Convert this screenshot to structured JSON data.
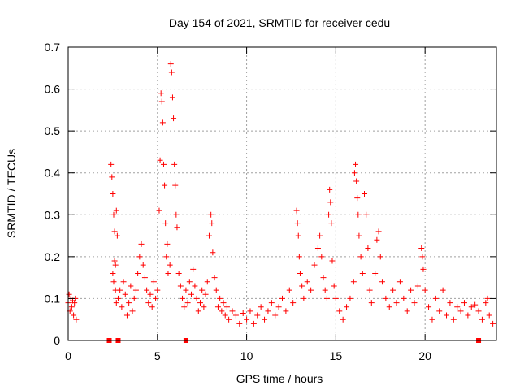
{
  "chart_data": {
    "type": "scatter",
    "title": "Day 154 of 2021, SRMTID for receiver cedu",
    "xlabel": "GPS time / hours",
    "ylabel": "SRMTID / TECUs",
    "xlim": [
      0,
      24
    ],
    "ylim": [
      0,
      0.7
    ],
    "xticks": [
      0,
      5,
      10,
      15,
      20
    ],
    "yticks": [
      0,
      0.1,
      0.2,
      0.3,
      0.4,
      0.5,
      0.6,
      0.7
    ],
    "xtick_labels": [
      "0",
      "5",
      "10",
      "15",
      "20"
    ],
    "ytick_labels": [
      "0",
      "0.1",
      "0.2",
      "0.3",
      "0.4",
      "0.5",
      "0.6",
      "0.7"
    ],
    "grid": true,
    "marker": "+",
    "color": "#ff0000",
    "series": [
      {
        "name": "SRMTID",
        "points": [
          [
            0.0,
            0.09
          ],
          [
            0.05,
            0.11
          ],
          [
            0.1,
            0.07
          ],
          [
            0.15,
            0.1
          ],
          [
            0.2,
            0.08
          ],
          [
            0.25,
            0.095
          ],
          [
            0.3,
            0.06
          ],
          [
            0.35,
            0.09
          ],
          [
            0.4,
            0.1
          ],
          [
            0.45,
            0.05
          ],
          [
            2.4,
            0.42
          ],
          [
            2.45,
            0.39
          ],
          [
            2.5,
            0.35
          ],
          [
            2.55,
            0.3
          ],
          [
            2.6,
            0.26
          ],
          [
            2.65,
            0.18
          ],
          [
            2.7,
            0.31
          ],
          [
            2.75,
            0.25
          ],
          [
            2.5,
            0.16
          ],
          [
            2.55,
            0.14
          ],
          [
            2.6,
            0.19
          ],
          [
            2.65,
            0.12
          ],
          [
            2.7,
            0.09
          ],
          [
            2.8,
            0.1
          ],
          [
            2.9,
            0.12
          ],
          [
            3.0,
            0.08
          ],
          [
            3.1,
            0.14
          ],
          [
            3.2,
            0.11
          ],
          [
            3.3,
            0.06
          ],
          [
            3.4,
            0.09
          ],
          [
            3.5,
            0.13
          ],
          [
            3.6,
            0.07
          ],
          [
            3.7,
            0.1
          ],
          [
            3.8,
            0.12
          ],
          [
            3.9,
            0.16
          ],
          [
            4.0,
            0.2
          ],
          [
            4.1,
            0.23
          ],
          [
            4.2,
            0.18
          ],
          [
            4.3,
            0.15
          ],
          [
            4.4,
            0.12
          ],
          [
            4.5,
            0.09
          ],
          [
            4.6,
            0.11
          ],
          [
            4.7,
            0.08
          ],
          [
            4.8,
            0.14
          ],
          [
            4.9,
            0.1
          ],
          [
            5.0,
            0.12
          ],
          [
            5.1,
            0.31
          ],
          [
            5.15,
            0.43
          ],
          [
            5.2,
            0.59
          ],
          [
            5.25,
            0.57
          ],
          [
            5.3,
            0.52
          ],
          [
            5.35,
            0.42
          ],
          [
            5.4,
            0.37
          ],
          [
            5.45,
            0.28
          ],
          [
            5.5,
            0.2
          ],
          [
            5.55,
            0.23
          ],
          [
            5.6,
            0.16
          ],
          [
            5.7,
            0.18
          ],
          [
            5.75,
            0.66
          ],
          [
            5.8,
            0.64
          ],
          [
            5.85,
            0.58
          ],
          [
            5.9,
            0.53
          ],
          [
            5.95,
            0.42
          ],
          [
            6.0,
            0.37
          ],
          [
            6.05,
            0.3
          ],
          [
            6.1,
            0.27
          ],
          [
            6.2,
            0.16
          ],
          [
            6.3,
            0.13
          ],
          [
            6.4,
            0.1
          ],
          [
            6.5,
            0.08
          ],
          [
            6.6,
            0.12
          ],
          [
            6.7,
            0.09
          ],
          [
            6.8,
            0.14
          ],
          [
            6.9,
            0.11
          ],
          [
            7.0,
            0.17
          ],
          [
            7.1,
            0.13
          ],
          [
            7.2,
            0.1
          ],
          [
            7.3,
            0.07
          ],
          [
            7.4,
            0.09
          ],
          [
            7.5,
            0.12
          ],
          [
            7.6,
            0.08
          ],
          [
            7.7,
            0.11
          ],
          [
            7.8,
            0.14
          ],
          [
            7.9,
            0.25
          ],
          [
            8.0,
            0.3
          ],
          [
            8.05,
            0.28
          ],
          [
            8.1,
            0.21
          ],
          [
            8.2,
            0.15
          ],
          [
            8.3,
            0.12
          ],
          [
            8.4,
            0.08
          ],
          [
            8.5,
            0.1
          ],
          [
            8.6,
            0.07
          ],
          [
            8.7,
            0.09
          ],
          [
            8.8,
            0.06
          ],
          [
            8.9,
            0.08
          ],
          [
            9.0,
            0.05
          ],
          [
            9.2,
            0.07
          ],
          [
            9.4,
            0.06
          ],
          [
            9.6,
            0.04
          ],
          [
            9.8,
            0.065
          ],
          [
            10.0,
            0.05
          ],
          [
            10.2,
            0.07
          ],
          [
            10.4,
            0.04
          ],
          [
            10.6,
            0.06
          ],
          [
            10.8,
            0.08
          ],
          [
            11.0,
            0.05
          ],
          [
            11.2,
            0.07
          ],
          [
            11.4,
            0.09
          ],
          [
            11.6,
            0.06
          ],
          [
            11.8,
            0.08
          ],
          [
            12.0,
            0.1
          ],
          [
            12.2,
            0.07
          ],
          [
            12.4,
            0.12
          ],
          [
            12.6,
            0.09
          ],
          [
            12.8,
            0.31
          ],
          [
            12.85,
            0.28
          ],
          [
            12.9,
            0.25
          ],
          [
            12.95,
            0.2
          ],
          [
            13.0,
            0.16
          ],
          [
            13.1,
            0.13
          ],
          [
            13.2,
            0.1
          ],
          [
            13.4,
            0.14
          ],
          [
            13.6,
            0.12
          ],
          [
            13.8,
            0.18
          ],
          [
            14.0,
            0.22
          ],
          [
            14.1,
            0.25
          ],
          [
            14.2,
            0.2
          ],
          [
            14.3,
            0.15
          ],
          [
            14.4,
            0.12
          ],
          [
            14.5,
            0.1
          ],
          [
            14.6,
            0.3
          ],
          [
            14.65,
            0.36
          ],
          [
            14.7,
            0.33
          ],
          [
            14.75,
            0.28
          ],
          [
            14.8,
            0.19
          ],
          [
            14.9,
            0.13
          ],
          [
            15.0,
            0.1
          ],
          [
            15.2,
            0.07
          ],
          [
            15.4,
            0.05
          ],
          [
            15.6,
            0.08
          ],
          [
            15.8,
            0.1
          ],
          [
            16.0,
            0.14
          ],
          [
            16.05,
            0.4
          ],
          [
            16.1,
            0.42
          ],
          [
            16.15,
            0.38
          ],
          [
            16.2,
            0.34
          ],
          [
            16.25,
            0.3
          ],
          [
            16.3,
            0.25
          ],
          [
            16.4,
            0.2
          ],
          [
            16.5,
            0.16
          ],
          [
            16.6,
            0.35
          ],
          [
            16.7,
            0.3
          ],
          [
            16.8,
            0.22
          ],
          [
            16.9,
            0.12
          ],
          [
            17.0,
            0.09
          ],
          [
            17.2,
            0.16
          ],
          [
            17.3,
            0.24
          ],
          [
            17.4,
            0.26
          ],
          [
            17.5,
            0.2
          ],
          [
            17.6,
            0.14
          ],
          [
            17.8,
            0.1
          ],
          [
            18.0,
            0.08
          ],
          [
            18.2,
            0.12
          ],
          [
            18.4,
            0.09
          ],
          [
            18.6,
            0.14
          ],
          [
            18.8,
            0.1
          ],
          [
            19.0,
            0.07
          ],
          [
            19.2,
            0.12
          ],
          [
            19.4,
            0.09
          ],
          [
            19.6,
            0.13
          ],
          [
            19.8,
            0.22
          ],
          [
            19.85,
            0.2
          ],
          [
            19.9,
            0.17
          ],
          [
            20.0,
            0.12
          ],
          [
            20.2,
            0.08
          ],
          [
            20.4,
            0.05
          ],
          [
            20.6,
            0.1
          ],
          [
            20.8,
            0.07
          ],
          [
            21.0,
            0.12
          ],
          [
            21.2,
            0.06
          ],
          [
            21.4,
            0.09
          ],
          [
            21.6,
            0.05
          ],
          [
            21.8,
            0.08
          ],
          [
            22.0,
            0.07
          ],
          [
            22.2,
            0.09
          ],
          [
            22.4,
            0.06
          ],
          [
            22.6,
            0.08
          ],
          [
            22.8,
            0.085
          ],
          [
            23.0,
            0.07
          ],
          [
            23.2,
            0.05
          ],
          [
            23.4,
            0.09
          ],
          [
            23.5,
            0.1
          ],
          [
            23.6,
            0.06
          ],
          [
            23.8,
            0.04
          ]
        ]
      }
    ],
    "gap_markers_x": [
      2.3,
      2.8,
      6.6,
      23.0
    ]
  }
}
